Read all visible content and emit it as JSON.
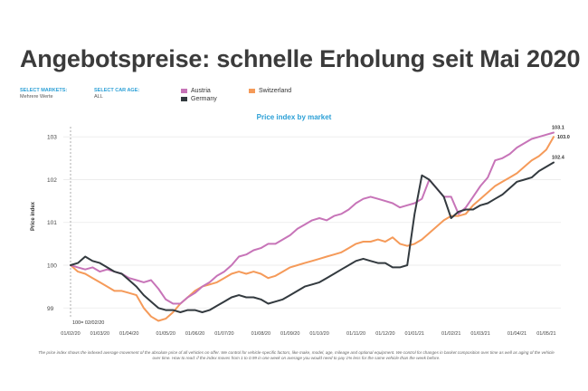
{
  "header": {
    "title": "Angebotspreise: schnelle Erholung seit Mai 2020"
  },
  "filters": [
    {
      "label": "SELECT MARKETS:",
      "value": "Mehrere Werte"
    },
    {
      "label": "SELECT CAR AGE:",
      "value": "ALL"
    }
  ],
  "colors": {
    "Austria": "#c774b8",
    "Switzerland": "#f59a59",
    "Germany": "#333a3f",
    "accent": "#2a9fd6"
  },
  "footnote": "The price index shows the indexed average movement of the absolute price of all vehicles on offer. We control for vehicle-specific factors, like make, model, age, mileage and optional equipment. We control for changes in basket composition over time as well as aging of the vehicle over time. How to read: if the index moves from 1 to 0.99 in one week on average you would need to pay 1% less for the same vehicle than the week before.",
  "chart_data": {
    "type": "line",
    "title": "Price index by market",
    "xlabel": "",
    "ylabel": "Price index",
    "ylim": [
      98.9,
      103.3
    ],
    "yticks": [
      99,
      100,
      101,
      102,
      103
    ],
    "xlim": [
      0,
      66
    ],
    "x_tick_labels": [
      "01/02/20",
      "01/03/20",
      "01/04/20",
      "01/05/20",
      "01/06/20",
      "01/07/20",
      "01/08/20",
      "01/09/20",
      "01/10/20",
      "01/11/20",
      "01/12/20",
      "01/01/21",
      "01/02/21",
      "01/03/21",
      "01/04/21",
      "01/05/21"
    ],
    "x_tick_positions": [
      0,
      4,
      8,
      13,
      17,
      21,
      26,
      30,
      34,
      39,
      43,
      47,
      52,
      56,
      61,
      65
    ],
    "reference_line": {
      "x": 0,
      "label": "100= 02/02/20"
    },
    "series": [
      {
        "name": "Austria",
        "end_label": "103.1",
        "values": [
          100.0,
          99.95,
          99.9,
          99.95,
          99.85,
          99.9,
          99.85,
          99.8,
          99.7,
          99.65,
          99.6,
          99.65,
          99.45,
          99.2,
          99.1,
          99.1,
          99.25,
          99.35,
          99.5,
          99.6,
          99.75,
          99.85,
          100.0,
          100.2,
          100.25,
          100.35,
          100.4,
          100.5,
          100.5,
          100.6,
          100.7,
          100.85,
          100.95,
          101.05,
          101.1,
          101.05,
          101.15,
          101.2,
          101.3,
          101.45,
          101.55,
          101.6,
          101.55,
          101.5,
          101.45,
          101.35,
          101.4,
          101.45,
          101.55,
          102.0,
          101.8,
          101.6,
          101.6,
          101.2,
          101.35,
          101.6,
          101.85,
          102.05,
          102.45,
          102.5,
          102.6,
          102.75,
          102.85,
          102.95,
          103.0,
          103.05,
          103.1
        ]
      },
      {
        "name": "Switzerland",
        "end_label": "103.0",
        "values": [
          100.0,
          99.85,
          99.8,
          99.7,
          99.6,
          99.5,
          99.4,
          99.4,
          99.35,
          99.3,
          99.0,
          98.8,
          98.7,
          98.75,
          98.9,
          99.1,
          99.25,
          99.4,
          99.5,
          99.55,
          99.6,
          99.7,
          99.8,
          99.85,
          99.8,
          99.85,
          99.8,
          99.7,
          99.75,
          99.85,
          99.95,
          100.0,
          100.05,
          100.1,
          100.15,
          100.2,
          100.25,
          100.3,
          100.4,
          100.5,
          100.55,
          100.55,
          100.6,
          100.55,
          100.65,
          100.5,
          100.45,
          100.5,
          100.6,
          100.75,
          100.9,
          101.05,
          101.15,
          101.15,
          101.2,
          101.4,
          101.55,
          101.7,
          101.85,
          101.95,
          102.05,
          102.15,
          102.3,
          102.45,
          102.55,
          102.7,
          103.0
        ]
      },
      {
        "name": "Germany",
        "end_label": "102.4",
        "values": [
          100.0,
          100.05,
          100.2,
          100.1,
          100.05,
          99.95,
          99.85,
          99.8,
          99.65,
          99.5,
          99.3,
          99.15,
          99.0,
          98.95,
          98.95,
          98.9,
          98.95,
          98.95,
          98.9,
          98.95,
          99.05,
          99.15,
          99.25,
          99.3,
          99.25,
          99.25,
          99.2,
          99.1,
          99.15,
          99.2,
          99.3,
          99.4,
          99.5,
          99.55,
          99.6,
          99.7,
          99.8,
          99.9,
          100.0,
          100.1,
          100.15,
          100.1,
          100.05,
          100.05,
          99.95,
          99.95,
          100.0,
          101.2,
          102.1,
          102.0,
          101.8,
          101.6,
          101.1,
          101.25,
          101.3,
          101.3,
          101.4,
          101.45,
          101.55,
          101.65,
          101.8,
          101.95,
          102.0,
          102.05,
          102.2,
          102.3,
          102.4
        ]
      }
    ]
  }
}
